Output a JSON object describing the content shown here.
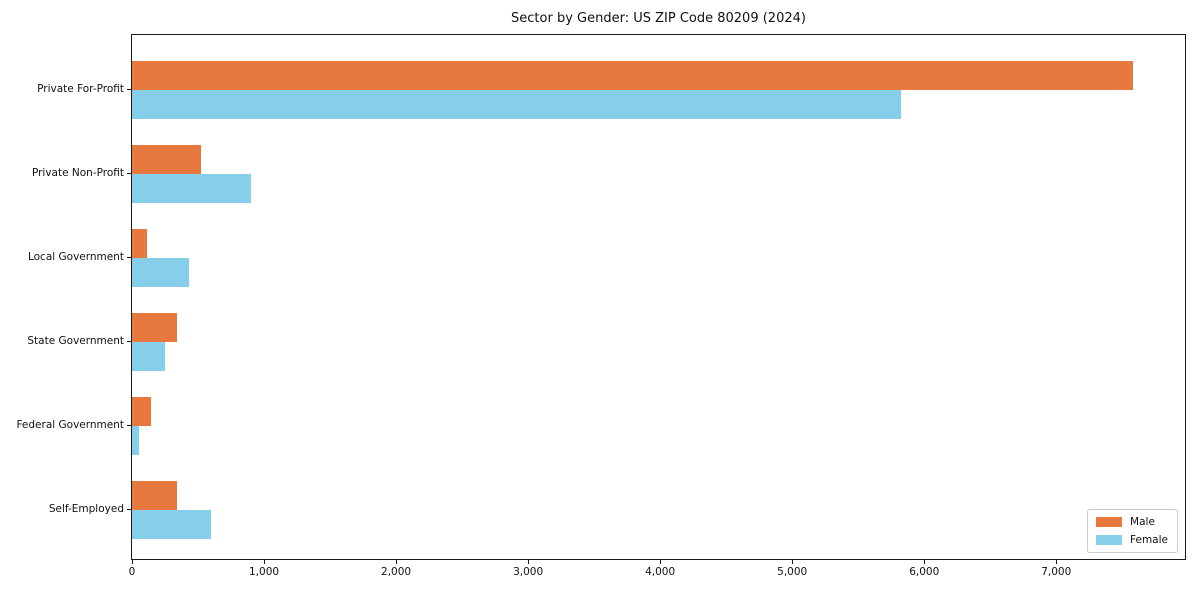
{
  "chart_data": {
    "type": "bar",
    "orientation": "horizontal",
    "title": "Sector by Gender: US ZIP Code 80209 (2024)",
    "categories": [
      "Private For-Profit",
      "Private Non-Profit",
      "Local Government",
      "State Government",
      "Federal Government",
      "Self-Employed"
    ],
    "series": [
      {
        "name": "Male",
        "color": "#e8793e",
        "values": [
          7580,
          520,
          115,
          340,
          145,
          340
        ]
      },
      {
        "name": "Female",
        "color": "#87ceeb",
        "values": [
          5825,
          900,
          435,
          250,
          55,
          595
        ]
      }
    ],
    "xlabel": "",
    "ylabel": "",
    "xlim": [
      0,
      7975
    ],
    "xticks": [
      0,
      1000,
      2000,
      3000,
      4000,
      5000,
      6000,
      7000
    ],
    "xtick_labels": [
      "0",
      "1,000",
      "2,000",
      "3,000",
      "4,000",
      "5,000",
      "6,000",
      "7,000"
    ],
    "grid": false,
    "legend_position": "lower right",
    "axis_color": "#1a1a1a"
  }
}
